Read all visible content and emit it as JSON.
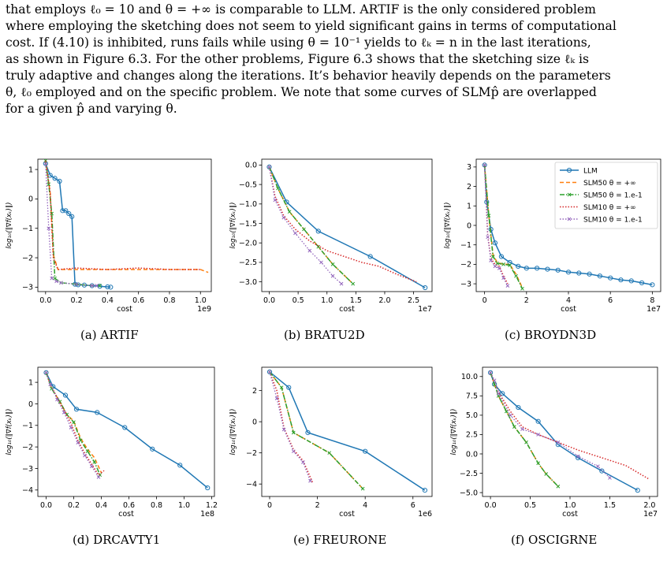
{
  "paragraph": [
    "that employs ℓ₀ = 10 and θ = +∞ is comparable to LLM. ARTIF is the only considered problem",
    "where employing the sketching does not seem to yield significant gains in terms of computational",
    "cost. If (4.10) is inhibited, runs fails while using θ = 10⁻¹ yields to ℓₖ = n in the last iterations,",
    "as shown in Figure 6.3. For the other problems, Figure 6.3 shows that the sketching size ℓₖ is",
    "truly adaptive and changes along the iterations. It’s behavior heavily depends on the parameters",
    "θ, ℓ₀ employed and on the specific problem. We note that some curves of SLMp̂ are overlapped",
    "for a given p̂ and varying θ."
  ],
  "legend": [
    {
      "label": "LLM",
      "color": "#1f77b4",
      "style": "solid-circle"
    },
    {
      "label": "SLM50 θ = +∞",
      "color": "#ff7f0e",
      "style": "dashed"
    },
    {
      "label": "SLM50 θ = 1.e-1",
      "color": "#2ca02c",
      "style": "dashdot-x"
    },
    {
      "label": "SLM10 θ = +∞",
      "color": "#d62728",
      "style": "dotted"
    },
    {
      "label": "SLM10 θ = 1.e-1",
      "color": "#9467bd",
      "style": "dotted-x"
    }
  ],
  "ylabel": "log₁₀(‖∇f(xₖ)‖)",
  "xlabel": "cost",
  "chart_data": [
    {
      "type": "line",
      "caption": "(a) ARTIF",
      "xlabel": "cost",
      "ylabel": "log₁₀(‖∇f(xₖ)‖)",
      "offset_label": "1e9",
      "xlim": [
        -0.05,
        1.07
      ],
      "ylim": [
        -3.15,
        1.35
      ],
      "xticks": [
        0.0,
        0.2,
        0.4,
        0.6,
        0.8,
        1.0
      ],
      "xticklabels": [
        "0.0",
        "0.2",
        "0.4",
        "0.6",
        "0.8",
        "1.0"
      ],
      "yticks": [
        1,
        0,
        -1,
        -2,
        -3
      ],
      "yticklabels": [
        "1",
        "0",
        "−1",
        "−2",
        "−3"
      ],
      "series": [
        {
          "name": "LLM",
          "x": [
            0.0,
            0.03,
            0.06,
            0.09,
            0.11,
            0.13,
            0.15,
            0.17,
            0.19,
            0.21,
            0.25,
            0.3,
            0.35,
            0.4,
            0.42
          ],
          "y": [
            1.2,
            0.8,
            0.7,
            0.6,
            -0.4,
            -0.4,
            -0.5,
            -0.6,
            -2.9,
            -2.92,
            -2.93,
            -2.95,
            -2.97,
            -2.99,
            -3.0
          ]
        },
        {
          "name": "SLM50 θ = +∞",
          "x": [
            0.0,
            0.03,
            0.05,
            0.08,
            0.2,
            0.4,
            0.6,
            0.8,
            1.0,
            1.05
          ],
          "y": [
            1.3,
            0.2,
            -1.9,
            -2.4,
            -2.4,
            -2.4,
            -2.4,
            -2.4,
            -2.4,
            -2.5
          ]
        },
        {
          "name": "SLM50 θ = 1.e-1",
          "x": [
            0.0,
            0.02,
            0.04,
            0.06,
            0.1,
            0.2,
            0.3,
            0.35
          ],
          "y": [
            1.3,
            0.5,
            -0.5,
            -2.7,
            -2.85,
            -2.9,
            -2.95,
            -2.95
          ]
        },
        {
          "name": "SLM10 θ = +∞",
          "x": [
            0.0,
            0.03,
            0.05,
            0.08,
            0.2,
            0.4,
            0.6,
            0.8,
            1.0
          ],
          "y": [
            1.3,
            0.2,
            -2.0,
            -2.4,
            -2.35,
            -2.4,
            -2.35,
            -2.4,
            -2.4
          ]
        },
        {
          "name": "SLM10 θ = 1.e-1",
          "x": [
            0.0,
            0.02,
            0.04,
            0.07,
            0.1,
            0.2,
            0.3,
            0.33
          ],
          "y": [
            1.2,
            -1.0,
            -2.7,
            -2.8,
            -2.85,
            -2.9,
            -2.95,
            -2.95
          ]
        }
      ]
    },
    {
      "type": "line",
      "caption": "(b) BRATU2D",
      "xlabel": "cost",
      "ylabel": "log₁₀(‖∇f(xₖ)‖)",
      "offset_label": "1e7",
      "xlim": [
        -0.13,
        2.82
      ],
      "ylim": [
        -3.25,
        0.15
      ],
      "xticks": [
        0.0,
        0.5,
        1.0,
        1.5,
        2.0,
        2.5
      ],
      "xticklabels": [
        "0.0",
        "0.5",
        "1.0",
        "1.5",
        "2.0",
        "2.5"
      ],
      "yticks": [
        0.0,
        -0.5,
        -1.0,
        -1.5,
        -2.0,
        -2.5,
        -3.0
      ],
      "yticklabels": [
        "0.0",
        "−0.5",
        "−1.0",
        "−1.5",
        "−2.0",
        "−2.5",
        "−3.0"
      ],
      "series": [
        {
          "name": "LLM",
          "x": [
            0.0,
            0.3,
            0.85,
            1.75,
            2.7
          ],
          "y": [
            -0.05,
            -0.95,
            -1.7,
            -2.35,
            -3.15
          ]
        },
        {
          "name": "SLM50 θ = +∞",
          "x": [
            0.0,
            0.15,
            0.35,
            0.6,
            0.85,
            1.1,
            1.45
          ],
          "y": [
            -0.05,
            -0.6,
            -1.2,
            -1.65,
            -2.1,
            -2.55,
            -3.05
          ]
        },
        {
          "name": "SLM50 θ = 1.e-1",
          "x": [
            0.0,
            0.15,
            0.35,
            0.6,
            0.85,
            1.1,
            1.45
          ],
          "y": [
            -0.05,
            -0.6,
            -1.2,
            -1.65,
            -2.1,
            -2.55,
            -3.05
          ]
        },
        {
          "name": "SLM10 θ = +∞",
          "x": [
            0.0,
            0.1,
            0.25,
            0.45,
            0.7,
            1.0,
            1.3,
            1.6,
            1.9,
            2.2,
            2.55
          ],
          "y": [
            -0.05,
            -0.8,
            -1.3,
            -1.65,
            -1.95,
            -2.2,
            -2.35,
            -2.5,
            -2.6,
            -2.8,
            -3.0
          ]
        },
        {
          "name": "SLM10 θ = 1.e-1",
          "x": [
            0.0,
            0.1,
            0.25,
            0.45,
            0.7,
            0.9,
            1.1,
            1.25
          ],
          "y": [
            -0.05,
            -0.9,
            -1.35,
            -1.75,
            -2.2,
            -2.5,
            -2.85,
            -3.05
          ]
        }
      ]
    },
    {
      "type": "line",
      "caption": "(c) BROYDN3D",
      "xlabel": "cost",
      "ylabel": "log₁₀(‖∇f(xₖ)‖)",
      "offset_label": "1e7",
      "xlim": [
        -0.4,
        8.4
      ],
      "ylim": [
        -3.4,
        3.4
      ],
      "xticks": [
        0,
        2,
        4,
        6,
        8
      ],
      "xticklabels": [
        "0",
        "2",
        "4",
        "6",
        "8"
      ],
      "yticks": [
        3,
        2,
        1,
        0,
        -1,
        -2,
        -3
      ],
      "yticklabels": [
        "3",
        "2",
        "1",
        "0",
        "−1",
        "−2",
        "−3"
      ],
      "series": [
        {
          "name": "LLM",
          "x": [
            0.0,
            0.1,
            0.3,
            0.5,
            0.8,
            1.2,
            1.6,
            2.0,
            2.5,
            3.0,
            3.5,
            4.0,
            4.5,
            5.0,
            5.5,
            6.0,
            6.5,
            7.0,
            7.5,
            8.0
          ],
          "y": [
            3.1,
            1.2,
            -0.2,
            -0.9,
            -1.6,
            -1.9,
            -2.1,
            -2.2,
            -2.2,
            -2.25,
            -2.3,
            -2.4,
            -2.45,
            -2.5,
            -2.6,
            -2.7,
            -2.8,
            -2.85,
            -2.95,
            -3.05
          ]
        },
        {
          "name": "SLM50 θ = +∞",
          "x": [
            0.0,
            0.2,
            0.4,
            0.6,
            0.9,
            1.2,
            1.5,
            1.8
          ],
          "y": [
            3.1,
            0.5,
            -1.5,
            -1.9,
            -2.0,
            -2.0,
            -2.5,
            -3.2
          ]
        },
        {
          "name": "SLM50 θ = 1.e-1",
          "x": [
            0.0,
            0.2,
            0.4,
            0.6,
            0.9,
            1.2,
            1.5,
            1.8
          ],
          "y": [
            3.1,
            0.5,
            -1.6,
            -1.95,
            -2.0,
            -2.05,
            -2.6,
            -3.25
          ]
        },
        {
          "name": "SLM10 θ = +∞",
          "x": [
            0.0,
            0.15,
            0.3,
            0.5,
            0.7,
            0.9,
            1.1
          ],
          "y": [
            3.1,
            -0.5,
            -1.7,
            -2.0,
            -2.1,
            -2.6,
            -3.0
          ]
        },
        {
          "name": "SLM10 θ = 1.e-1",
          "x": [
            0.0,
            0.15,
            0.3,
            0.5,
            0.7,
            0.9,
            1.1
          ],
          "y": [
            3.1,
            -0.6,
            -1.8,
            -2.1,
            -2.2,
            -2.7,
            -3.1
          ]
        }
      ]
    },
    {
      "type": "line",
      "caption": "(d) DRCAVTY1",
      "xlabel": "cost",
      "ylabel": "log₁₀(‖∇f(xₖ)‖)",
      "offset_label": "1e8",
      "xlim": [
        -0.06,
        1.22
      ],
      "ylim": [
        -4.3,
        1.7
      ],
      "xticks": [
        0.0,
        0.2,
        0.4,
        0.6,
        0.8,
        1.0,
        1.2
      ],
      "xticklabels": [
        "0.0",
        "0.2",
        "0.4",
        "0.6",
        "0.8",
        "1.0",
        "1.2"
      ],
      "yticks": [
        1,
        0,
        -1,
        -2,
        -3,
        -4
      ],
      "yticklabels": [
        "1",
        "0",
        "−1",
        "−2",
        "−3",
        "−4"
      ],
      "series": [
        {
          "name": "LLM",
          "x": [
            0.0,
            0.05,
            0.14,
            0.22,
            0.37,
            0.57,
            0.77,
            0.97,
            1.17
          ],
          "y": [
            1.45,
            0.8,
            0.4,
            -0.25,
            -0.4,
            -1.1,
            -2.1,
            -2.85,
            -3.9
          ]
        },
        {
          "name": "SLM50 θ = +∞",
          "x": [
            0.0,
            0.04,
            0.1,
            0.15,
            0.2,
            0.25,
            0.3,
            0.35,
            0.4
          ],
          "y": [
            1.45,
            0.7,
            0.1,
            -0.5,
            -0.8,
            -1.6,
            -2.1,
            -2.5,
            -3.2
          ]
        },
        {
          "name": "SLM50 θ = 1.e-1",
          "x": [
            0.0,
            0.04,
            0.1,
            0.15,
            0.2,
            0.25,
            0.3,
            0.35,
            0.39
          ],
          "y": [
            1.45,
            0.7,
            0.1,
            -0.5,
            -0.85,
            -1.7,
            -2.2,
            -2.7,
            -3.3
          ]
        },
        {
          "name": "SLM10 θ = +∞",
          "x": [
            0.0,
            0.03,
            0.08,
            0.13,
            0.18,
            0.23,
            0.28,
            0.33,
            0.38,
            0.42
          ],
          "y": [
            1.45,
            0.9,
            0.3,
            -0.3,
            -0.9,
            -1.7,
            -2.3,
            -2.8,
            -3.3,
            -3.1
          ]
        },
        {
          "name": "SLM10 θ = 1.e-1",
          "x": [
            0.0,
            0.03,
            0.08,
            0.13,
            0.18,
            0.23,
            0.28,
            0.33,
            0.38
          ],
          "y": [
            1.45,
            0.9,
            0.2,
            -0.4,
            -1.1,
            -1.8,
            -2.4,
            -2.9,
            -3.4
          ]
        }
      ]
    },
    {
      "type": "line",
      "caption": "(e) FREURONE",
      "xlabel": "cost",
      "ylabel": "log₁₀(‖∇f(xₖ)‖)",
      "offset_label": "1e6",
      "xlim": [
        -0.33,
        6.8
      ],
      "ylim": [
        -4.8,
        3.5
      ],
      "xticks": [
        0,
        2,
        4,
        6
      ],
      "xticklabels": [
        "0",
        "2",
        "4",
        "6"
      ],
      "yticks": [
        2,
        0,
        -2,
        -4
      ],
      "yticklabels": [
        "2",
        "0",
        "−2",
        "−4"
      ],
      "series": [
        {
          "name": "LLM",
          "x": [
            0.0,
            0.8,
            1.6,
            4.0,
            6.5
          ],
          "y": [
            3.2,
            2.2,
            -0.7,
            -1.9,
            -4.4
          ]
        },
        {
          "name": "SLM50 θ = +∞",
          "x": [
            0.0,
            0.5,
            1.0,
            2.5,
            3.9
          ],
          "y": [
            3.2,
            2.2,
            -0.7,
            -2.0,
            -4.3
          ]
        },
        {
          "name": "SLM50 θ = 1.e-1",
          "x": [
            0.0,
            0.5,
            1.0,
            2.5,
            3.9
          ],
          "y": [
            3.2,
            2.2,
            -0.7,
            -2.0,
            -4.3
          ]
        },
        {
          "name": "SLM10 θ = +∞",
          "x": [
            0.0,
            0.3,
            0.6,
            1.0,
            1.4,
            1.8
          ],
          "y": [
            3.2,
            2.0,
            -0.4,
            -1.8,
            -2.5,
            -3.9
          ]
        },
        {
          "name": "SLM10 θ = 1.e-1",
          "x": [
            0.0,
            0.3,
            0.6,
            1.0,
            1.4,
            1.7
          ],
          "y": [
            3.2,
            1.5,
            -0.5,
            -1.9,
            -2.6,
            -3.8
          ]
        }
      ]
    },
    {
      "type": "line",
      "caption": "(f) OSCIGRNE",
      "xlabel": "cost",
      "ylabel": "log₁₀(‖∇f(xₖ)‖)",
      "offset_label": "1e7",
      "xlim": [
        -0.1,
        2.1
      ],
      "ylim": [
        -5.5,
        11.2
      ],
      "xticks": [
        0.0,
        0.5,
        1.0,
        1.5,
        2.0
      ],
      "xticklabels": [
        "0.0",
        "0.5",
        "1.0",
        "1.5",
        "2.0"
      ],
      "yticks": [
        10.0,
        7.5,
        5.0,
        2.5,
        0.0,
        -2.5,
        -5.0
      ],
      "yticklabels": [
        "10.0",
        "7.5",
        "5.0",
        "2.5",
        "0.0",
        "−2.5",
        "−5.0"
      ],
      "series": [
        {
          "name": "LLM",
          "x": [
            0.0,
            0.05,
            0.15,
            0.35,
            0.6,
            0.85,
            1.1,
            1.4,
            1.85
          ],
          "y": [
            10.5,
            9.0,
            7.8,
            6.0,
            4.2,
            1.2,
            -0.5,
            -2.2,
            -4.7
          ]
        },
        {
          "name": "SLM50 θ = +∞",
          "x": [
            0.0,
            0.05,
            0.1,
            0.2,
            0.3,
            0.45,
            0.6,
            0.7,
            0.85
          ],
          "y": [
            10.5,
            9.0,
            7.5,
            5.5,
            3.5,
            1.5,
            -1.2,
            -2.6,
            -4.2
          ]
        },
        {
          "name": "SLM50 θ = 1.e-1",
          "x": [
            0.0,
            0.05,
            0.1,
            0.2,
            0.3,
            0.45,
            0.6,
            0.7,
            0.85
          ],
          "y": [
            10.5,
            9.0,
            7.5,
            5.5,
            3.5,
            1.5,
            -1.2,
            -2.6,
            -4.2
          ]
        },
        {
          "name": "SLM10 θ = +∞",
          "x": [
            0.0,
            0.05,
            0.1,
            0.25,
            0.4,
            0.6,
            0.85,
            1.1,
            1.4,
            1.7,
            2.0
          ],
          "y": [
            10.5,
            9.5,
            8.0,
            5.5,
            3.5,
            2.5,
            1.5,
            0.5,
            -0.5,
            -1.5,
            -3.3
          ]
        },
        {
          "name": "SLM10 θ = 1.e-1",
          "x": [
            0.0,
            0.05,
            0.1,
            0.25,
            0.4,
            0.6,
            0.85,
            1.1,
            1.35,
            1.5
          ],
          "y": [
            10.5,
            9.5,
            7.8,
            5.0,
            3.2,
            2.5,
            1.5,
            -0.3,
            -1.6,
            -3.1
          ]
        }
      ]
    }
  ]
}
